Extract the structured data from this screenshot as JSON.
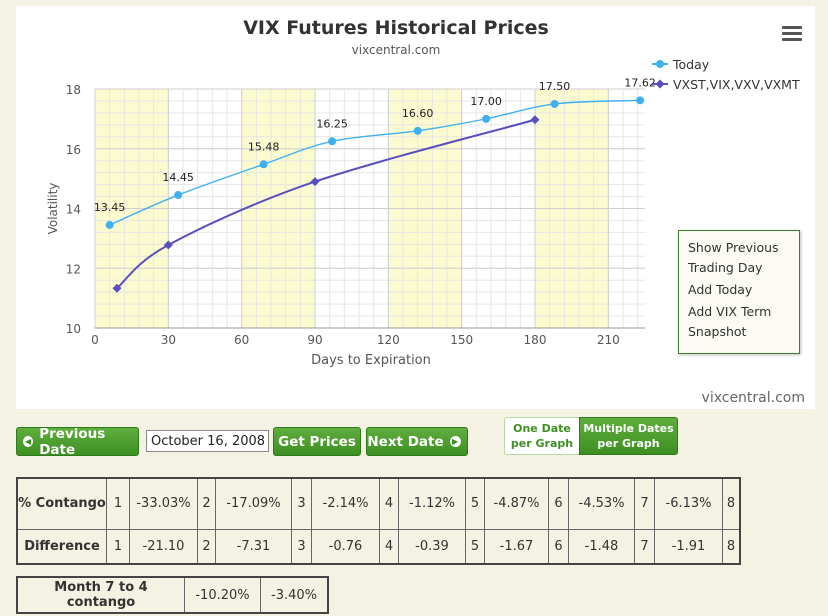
{
  "chart_data": {
    "type": "line",
    "title": "VIX Futures Historical Prices",
    "subtitle": "vixcentral.com",
    "xlabel": "Days to Expiration",
    "ylabel": "Volatility",
    "xlim": [
      0,
      225
    ],
    "ylim": [
      10,
      18
    ],
    "xticks": [
      0,
      30,
      60,
      90,
      120,
      150,
      180,
      210
    ],
    "yticks": [
      10,
      12,
      14,
      16,
      18
    ],
    "legend_position": "top-right",
    "series": [
      {
        "name": "Today",
        "color": "#3fb0f0",
        "marker": "circle",
        "x": [
          6,
          34,
          69,
          97,
          132,
          160,
          188,
          223
        ],
        "y": [
          13.45,
          14.45,
          15.48,
          16.25,
          16.6,
          17.0,
          17.5,
          17.62
        ],
        "labels": [
          "13.45",
          "14.45",
          "15.48",
          "16.25",
          "16.60",
          "17.00",
          "17.50",
          "17.62"
        ]
      },
      {
        "name": "VXST,VIX,VXV,VXMT",
        "color": "#5a4fbf",
        "marker": "diamond",
        "x": [
          9,
          30,
          90,
          180
        ],
        "y": [
          11.33,
          12.78,
          14.9,
          16.97
        ]
      }
    ]
  },
  "chart_credit": "vixcentral.com",
  "context_menu": {
    "items": [
      "Show Previous Trading Day",
      "Add Today",
      "Add VIX Term Snapshot"
    ]
  },
  "controls": {
    "prev_label": "Previous Date",
    "date_value": "October 16, 2008",
    "get_prices_label": "Get Prices",
    "next_label": "Next Date",
    "toggle_one": "One Date\nper Graph",
    "toggle_multi": "Multiple Dates\nper Graph"
  },
  "table": {
    "contango_label": "% Contango",
    "difference_label": "Difference",
    "month_numbers": [
      "1",
      "2",
      "3",
      "4",
      "5",
      "6",
      "7",
      "8"
    ],
    "contango_values": [
      "-33.03%",
      "-17.09%",
      "-2.14%",
      "-1.12%",
      "-4.87%",
      "-4.53%",
      "-6.13%"
    ],
    "difference_values": [
      "-21.10",
      "-7.31",
      "-0.76",
      "-0.39",
      "-1.67",
      "-1.48",
      "-1.91"
    ]
  },
  "month74": {
    "label": "Month 7 to 4 contango",
    "values": [
      "-10.20%",
      "-3.40%"
    ]
  }
}
